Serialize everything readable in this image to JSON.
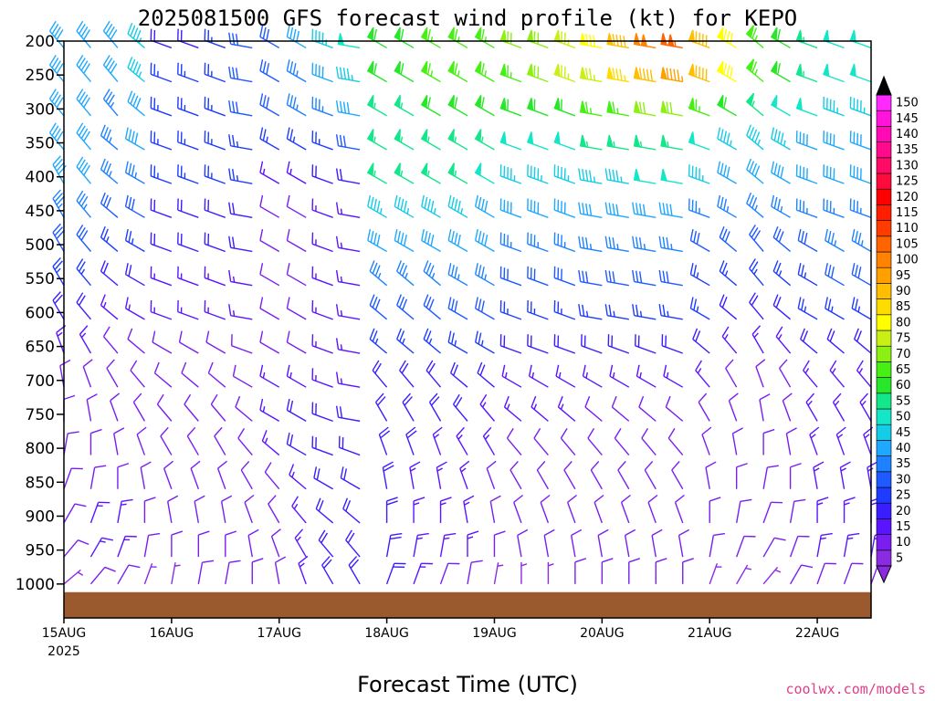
{
  "chart_data": {
    "type": "wind-barb-time-height",
    "title": "2025081500 GFS forecast wind profile (kt) for KEPO",
    "xlabel": "Forecast Time (UTC)",
    "credit": "coolwx.com/models",
    "x_ticks": [
      {
        "label": "15AUG",
        "sub": "2025",
        "hour": 0
      },
      {
        "label": "16AUG",
        "sub": "",
        "hour": 24
      },
      {
        "label": "17AUG",
        "sub": "",
        "hour": 48
      },
      {
        "label": "18AUG",
        "sub": "",
        "hour": 72
      },
      {
        "label": "19AUG",
        "sub": "",
        "hour": 96
      },
      {
        "label": "20AUG",
        "sub": "",
        "hour": 120
      },
      {
        "label": "21AUG",
        "sub": "",
        "hour": 144
      },
      {
        "label": "22AUG",
        "sub": "",
        "hour": 168
      }
    ],
    "x_range_hours": [
      0,
      180
    ],
    "y_ticks": [
      200,
      250,
      300,
      350,
      400,
      450,
      500,
      550,
      600,
      650,
      700,
      750,
      800,
      850,
      900,
      950,
      1000
    ],
    "y_range_hpa": [
      200,
      1050
    ],
    "surface_pressure_hpa": 1012,
    "ground_color": "#9b5a2e",
    "colorbar": {
      "labels": [
        5,
        10,
        15,
        20,
        25,
        30,
        35,
        40,
        45,
        50,
        55,
        60,
        65,
        70,
        75,
        80,
        85,
        90,
        95,
        100,
        105,
        110,
        115,
        120,
        125,
        130,
        135,
        140,
        145,
        150
      ],
      "colors": [
        "#8a2be2",
        "#7a1ef0",
        "#5a14ff",
        "#3a1eff",
        "#1e3cff",
        "#1e5aff",
        "#1e82ff",
        "#1ea8ff",
        "#14cce6",
        "#14e6c8",
        "#14e68c",
        "#28e628",
        "#46f014",
        "#8cf014",
        "#c8f014",
        "#ffff00",
        "#ffdc00",
        "#ffbe00",
        "#ffa000",
        "#ff8200",
        "#ff6400",
        "#ff3c00",
        "#ff1e00",
        "#ff0000",
        "#ff0a3c",
        "#ff0a64",
        "#ff0a8c",
        "#ff0ab4",
        "#ff14dc",
        "#ff28ff"
      ]
    },
    "levels_hpa": [
      210,
      260,
      310,
      360,
      410,
      460,
      510,
      560,
      610,
      660,
      710,
      760,
      810,
      860,
      910,
      960,
      1000
    ],
    "hours": [
      0,
      6,
      12,
      18,
      24,
      30,
      36,
      42,
      48,
      54,
      60,
      66,
      72,
      78,
      84,
      90,
      96,
      102,
      108,
      114,
      120,
      126,
      132,
      138,
      144,
      150,
      156,
      162,
      168,
      174,
      180
    ],
    "speed_kt": [
      [
        40,
        40,
        40,
        45,
        20,
        20,
        25,
        30,
        30,
        40,
        45,
        50,
        60,
        60,
        65,
        65,
        65,
        70,
        70,
        75,
        80,
        90,
        100,
        105,
        90,
        80,
        65,
        60,
        55,
        50,
        50
      ],
      [
        40,
        40,
        40,
        45,
        25,
        25,
        25,
        30,
        30,
        35,
        40,
        45,
        60,
        60,
        65,
        65,
        65,
        65,
        70,
        75,
        75,
        85,
        90,
        95,
        90,
        80,
        65,
        60,
        55,
        50,
        50
      ],
      [
        40,
        40,
        35,
        40,
        25,
        25,
        25,
        30,
        30,
        35,
        35,
        40,
        55,
        55,
        60,
        60,
        60,
        60,
        60,
        60,
        65,
        65,
        70,
        70,
        65,
        60,
        55,
        50,
        50,
        45,
        45
      ],
      [
        40,
        40,
        35,
        40,
        25,
        25,
        25,
        25,
        25,
        25,
        25,
        30,
        55,
        55,
        55,
        55,
        55,
        50,
        50,
        50,
        55,
        55,
        55,
        55,
        50,
        45,
        45,
        45,
        40,
        40,
        40
      ],
      [
        40,
        40,
        35,
        35,
        25,
        25,
        25,
        25,
        15,
        15,
        20,
        20,
        55,
        55,
        55,
        55,
        50,
        45,
        45,
        45,
        45,
        45,
        50,
        50,
        45,
        40,
        40,
        40,
        40,
        40,
        40
      ],
      [
        35,
        35,
        30,
        30,
        20,
        20,
        20,
        20,
        10,
        10,
        15,
        15,
        45,
        45,
        45,
        45,
        40,
        40,
        40,
        40,
        40,
        40,
        40,
        40,
        35,
        35,
        35,
        35,
        35,
        35,
        35
      ],
      [
        30,
        30,
        25,
        25,
        20,
        20,
        20,
        20,
        10,
        10,
        15,
        15,
        40,
        40,
        40,
        40,
        40,
        35,
        35,
        35,
        35,
        35,
        35,
        35,
        30,
        30,
        30,
        30,
        30,
        35,
        35
      ],
      [
        25,
        25,
        20,
        20,
        15,
        15,
        15,
        15,
        10,
        10,
        15,
        15,
        35,
        35,
        35,
        35,
        35,
        30,
        30,
        30,
        30,
        30,
        30,
        30,
        25,
        25,
        25,
        25,
        25,
        30,
        30
      ],
      [
        20,
        20,
        15,
        15,
        15,
        15,
        15,
        15,
        10,
        10,
        15,
        15,
        30,
        30,
        30,
        30,
        30,
        25,
        25,
        25,
        25,
        25,
        25,
        25,
        25,
        20,
        20,
        20,
        25,
        25,
        25
      ],
      [
        15,
        15,
        10,
        10,
        10,
        10,
        10,
        10,
        10,
        10,
        15,
        15,
        25,
        25,
        25,
        25,
        25,
        20,
        20,
        20,
        20,
        20,
        20,
        20,
        20,
        15,
        15,
        15,
        20,
        20,
        20
      ],
      [
        10,
        10,
        10,
        10,
        10,
        10,
        10,
        10,
        15,
        15,
        15,
        15,
        20,
        20,
        20,
        20,
        20,
        15,
        15,
        15,
        15,
        15,
        15,
        15,
        15,
        10,
        10,
        10,
        15,
        15,
        15
      ],
      [
        10,
        10,
        10,
        10,
        10,
        10,
        10,
        10,
        15,
        20,
        20,
        20,
        20,
        20,
        20,
        20,
        15,
        15,
        15,
        15,
        10,
        10,
        10,
        10,
        10,
        10,
        10,
        10,
        15,
        15,
        15
      ],
      [
        10,
        10,
        10,
        10,
        10,
        10,
        10,
        10,
        15,
        20,
        20,
        20,
        20,
        20,
        15,
        15,
        15,
        10,
        10,
        10,
        10,
        10,
        10,
        10,
        10,
        10,
        10,
        10,
        15,
        15,
        15
      ],
      [
        10,
        10,
        10,
        10,
        10,
        10,
        10,
        10,
        10,
        15,
        20,
        20,
        20,
        15,
        15,
        15,
        10,
        10,
        10,
        10,
        10,
        10,
        10,
        10,
        10,
        10,
        10,
        10,
        15,
        15,
        15
      ],
      [
        10,
        15,
        15,
        10,
        10,
        10,
        10,
        10,
        10,
        15,
        20,
        20,
        20,
        15,
        15,
        15,
        10,
        10,
        10,
        10,
        10,
        10,
        10,
        10,
        10,
        10,
        10,
        10,
        15,
        15,
        15
      ],
      [
        10,
        15,
        15,
        10,
        10,
        10,
        10,
        10,
        10,
        15,
        20,
        20,
        20,
        15,
        15,
        15,
        10,
        10,
        10,
        10,
        10,
        10,
        10,
        10,
        10,
        10,
        10,
        10,
        15,
        15,
        15
      ],
      [
        5,
        10,
        10,
        5,
        5,
        10,
        10,
        10,
        10,
        15,
        20,
        20,
        20,
        15,
        10,
        10,
        5,
        5,
        5,
        10,
        10,
        10,
        10,
        10,
        5,
        5,
        5,
        10,
        10,
        10,
        10
      ]
    ],
    "direction_deg": [
      [
        320,
        320,
        320,
        310,
        290,
        290,
        290,
        280,
        300,
        300,
        290,
        280,
        300,
        300,
        300,
        300,
        300,
        290,
        290,
        290,
        280,
        280,
        280,
        280,
        290,
        300,
        310,
        300,
        290,
        290,
        290
      ],
      [
        320,
        320,
        320,
        310,
        290,
        290,
        290,
        280,
        300,
        300,
        290,
        280,
        300,
        300,
        300,
        300,
        300,
        290,
        290,
        290,
        280,
        280,
        280,
        280,
        290,
        300,
        310,
        300,
        290,
        290,
        290
      ],
      [
        320,
        320,
        320,
        310,
        290,
        290,
        290,
        280,
        300,
        300,
        290,
        280,
        300,
        300,
        300,
        300,
        300,
        290,
        290,
        290,
        280,
        280,
        280,
        280,
        290,
        300,
        310,
        300,
        290,
        290,
        290
      ],
      [
        320,
        320,
        310,
        300,
        290,
        290,
        290,
        280,
        300,
        300,
        290,
        280,
        300,
        300,
        300,
        300,
        300,
        290,
        290,
        290,
        280,
        280,
        280,
        280,
        290,
        300,
        310,
        300,
        290,
        290,
        290
      ],
      [
        330,
        320,
        310,
        300,
        290,
        290,
        290,
        280,
        300,
        300,
        290,
        280,
        300,
        300,
        300,
        300,
        300,
        290,
        290,
        290,
        280,
        280,
        280,
        280,
        290,
        300,
        310,
        300,
        290,
        290,
        290
      ],
      [
        330,
        320,
        310,
        300,
        290,
        290,
        290,
        280,
        300,
        300,
        290,
        280,
        300,
        300,
        300,
        300,
        300,
        290,
        290,
        290,
        280,
        280,
        280,
        280,
        290,
        300,
        310,
        300,
        290,
        290,
        290
      ],
      [
        330,
        320,
        310,
        300,
        290,
        290,
        290,
        280,
        300,
        300,
        290,
        280,
        300,
        300,
        300,
        300,
        300,
        290,
        290,
        290,
        280,
        280,
        280,
        280,
        300,
        310,
        320,
        310,
        300,
        300,
        300
      ],
      [
        330,
        320,
        310,
        300,
        290,
        290,
        290,
        280,
        300,
        300,
        290,
        280,
        310,
        310,
        310,
        300,
        300,
        290,
        290,
        290,
        280,
        280,
        280,
        280,
        300,
        310,
        320,
        310,
        300,
        300,
        300
      ],
      [
        330,
        320,
        310,
        300,
        290,
        290,
        290,
        280,
        300,
        300,
        290,
        280,
        310,
        310,
        310,
        300,
        300,
        290,
        290,
        290,
        280,
        280,
        280,
        280,
        300,
        310,
        320,
        310,
        300,
        300,
        300
      ],
      [
        340,
        330,
        320,
        310,
        300,
        300,
        300,
        290,
        300,
        300,
        290,
        280,
        310,
        310,
        310,
        300,
        300,
        290,
        290,
        290,
        290,
        290,
        290,
        290,
        310,
        320,
        330,
        320,
        310,
        310,
        310
      ],
      [
        350,
        340,
        330,
        320,
        310,
        310,
        310,
        300,
        300,
        300,
        290,
        280,
        320,
        320,
        320,
        310,
        310,
        300,
        300,
        300,
        300,
        300,
        300,
        300,
        320,
        330,
        340,
        330,
        320,
        320,
        320
      ],
      [
        0,
        350,
        340,
        330,
        320,
        320,
        320,
        310,
        300,
        300,
        290,
        280,
        330,
        330,
        330,
        320,
        320,
        310,
        310,
        310,
        310,
        310,
        310,
        310,
        330,
        340,
        350,
        340,
        330,
        330,
        330
      ],
      [
        10,
        0,
        350,
        340,
        330,
        330,
        330,
        320,
        310,
        300,
        290,
        290,
        340,
        340,
        340,
        330,
        330,
        320,
        320,
        320,
        320,
        320,
        320,
        320,
        340,
        350,
        0,
        350,
        340,
        340,
        340
      ],
      [
        20,
        10,
        0,
        350,
        340,
        340,
        340,
        330,
        320,
        310,
        300,
        300,
        350,
        350,
        350,
        340,
        340,
        330,
        330,
        330,
        330,
        330,
        330,
        330,
        350,
        0,
        10,
        0,
        350,
        350,
        350
      ],
      [
        30,
        20,
        10,
        0,
        350,
        350,
        350,
        340,
        330,
        320,
        310,
        310,
        0,
        0,
        0,
        350,
        350,
        340,
        340,
        340,
        340,
        340,
        340,
        340,
        0,
        10,
        20,
        10,
        0,
        0,
        0
      ],
      [
        40,
        30,
        20,
        10,
        0,
        0,
        0,
        350,
        340,
        330,
        320,
        320,
        10,
        10,
        10,
        0,
        0,
        350,
        350,
        350,
        350,
        350,
        350,
        350,
        10,
        20,
        30,
        20,
        10,
        10,
        10
      ],
      [
        50,
        40,
        30,
        20,
        10,
        10,
        10,
        0,
        350,
        340,
        330,
        330,
        20,
        20,
        20,
        10,
        10,
        0,
        0,
        0,
        0,
        0,
        0,
        0,
        20,
        30,
        40,
        30,
        20,
        20,
        20
      ]
    ]
  }
}
